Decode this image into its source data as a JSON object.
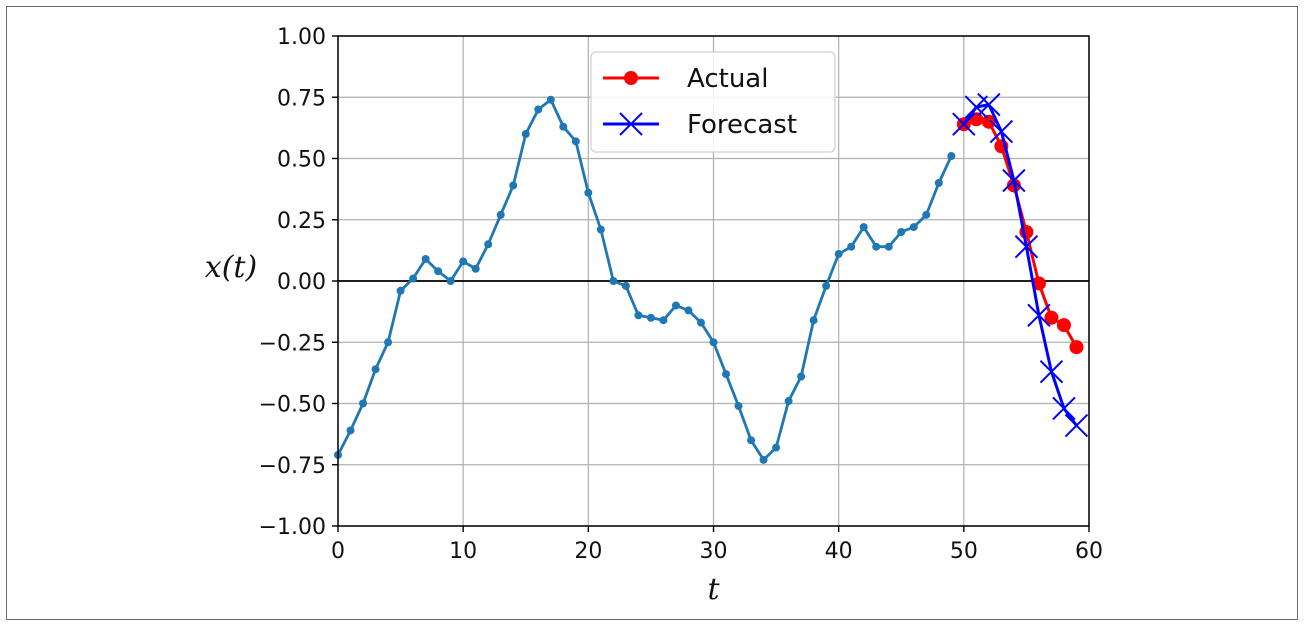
{
  "chart_data": {
    "type": "line",
    "title": "",
    "xlabel": "t",
    "ylabel": "x(t)",
    "xlim": [
      0,
      60
    ],
    "ylim": [
      -1.0,
      1.0
    ],
    "xticks": [
      0,
      10,
      20,
      30,
      40,
      50,
      60
    ],
    "xtick_labels": [
      "0",
      "10",
      "20",
      "30",
      "40",
      "50",
      "60"
    ],
    "yticks": [
      -1.0,
      -0.75,
      -0.5,
      -0.25,
      0.0,
      0.25,
      0.5,
      0.75,
      1.0
    ],
    "ytick_labels": [
      "−1.00",
      "−0.75",
      "−0.50",
      "−0.25",
      "0.00",
      "0.25",
      "0.50",
      "0.75",
      "1.00"
    ],
    "grid": true,
    "zero_line": true,
    "legend_position": "top-center",
    "series": [
      {
        "name": "",
        "color": "#1f77b4",
        "marker": "dot",
        "x": [
          0,
          1,
          2,
          3,
          4,
          5,
          6,
          7,
          8,
          9,
          10,
          11,
          12,
          13,
          14,
          15,
          16,
          17,
          18,
          19,
          20,
          21,
          22,
          23,
          24,
          25,
          26,
          27,
          28,
          29,
          30,
          31,
          32,
          33,
          34,
          35,
          36,
          37,
          38,
          39,
          40,
          41,
          42,
          43,
          44,
          45,
          46,
          47,
          48,
          49
        ],
        "y": [
          -0.71,
          -0.61,
          -0.5,
          -0.36,
          -0.25,
          -0.04,
          0.01,
          0.09,
          0.04,
          0.0,
          0.08,
          0.05,
          0.15,
          0.27,
          0.39,
          0.6,
          0.7,
          0.74,
          0.63,
          0.57,
          0.36,
          0.21,
          0.0,
          -0.02,
          -0.14,
          -0.15,
          -0.16,
          -0.1,
          -0.12,
          -0.17,
          -0.25,
          -0.38,
          -0.51,
          -0.65,
          -0.73,
          -0.68,
          -0.49,
          -0.39,
          -0.16,
          -0.02,
          0.11,
          0.14,
          0.22,
          0.14,
          0.14,
          0.2,
          0.22,
          0.27,
          0.4,
          0.51
        ]
      },
      {
        "name": "Actual",
        "color": "#ff0000",
        "marker": "circle",
        "x": [
          50,
          51,
          52,
          53,
          54,
          55,
          56,
          57,
          58,
          59
        ],
        "y": [
          0.64,
          0.66,
          0.65,
          0.55,
          0.39,
          0.2,
          -0.01,
          -0.15,
          -0.18,
          -0.27
        ]
      },
      {
        "name": "Forecast",
        "color": "#0000ff",
        "marker": "x",
        "x": [
          50,
          51,
          52,
          53,
          54,
          55,
          56,
          57,
          58,
          59
        ],
        "y": [
          0.64,
          0.71,
          0.72,
          0.61,
          0.41,
          0.14,
          -0.14,
          -0.37,
          -0.52,
          -0.59
        ]
      }
    ]
  }
}
